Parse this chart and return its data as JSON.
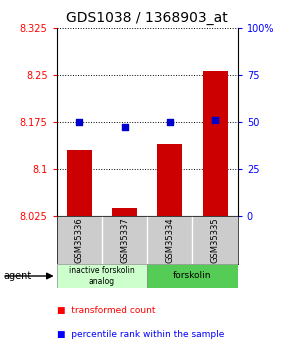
{
  "title": "GDS1038 / 1368903_at",
  "samples": [
    "GSM35336",
    "GSM35337",
    "GSM35334",
    "GSM35335"
  ],
  "red_values": [
    8.13,
    8.037,
    8.14,
    8.255
  ],
  "blue_values": [
    50,
    47,
    50,
    51
  ],
  "ylim_left": [
    8.025,
    8.325
  ],
  "ylim_right": [
    0,
    100
  ],
  "yticks_left": [
    8.025,
    8.1,
    8.175,
    8.25,
    8.325
  ],
  "ytick_labels_left": [
    "8.025",
    "8.1",
    "8.175",
    "8.25",
    "8.325"
  ],
  "yticks_right": [
    0,
    25,
    50,
    75,
    100
  ],
  "ytick_labels_right": [
    "0",
    "25",
    "50",
    "75",
    "100%"
  ],
  "groups": [
    {
      "label": "inactive forskolin\nanalog",
      "color": "#ccffcc"
    },
    {
      "label": "forskolin",
      "color": "#55cc55"
    }
  ],
  "bar_color": "#cc0000",
  "dot_color": "#0000cc",
  "background_color": "#ffffff",
  "agent_label": "agent",
  "legend_red": "transformed count",
  "legend_blue": "percentile rank within the sample",
  "bar_width": 0.55,
  "title_fontsize": 10,
  "label_bg": "#cccccc",
  "group1_color": "#ccffcc",
  "group2_color": "#55cc55"
}
